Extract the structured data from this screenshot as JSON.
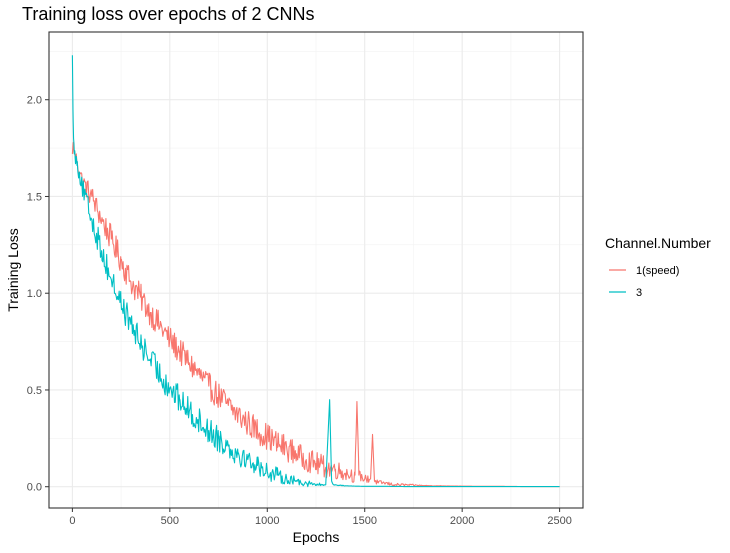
{
  "chart_data": {
    "type": "line",
    "title": "Training loss over epochs of 2 CNNs",
    "xlabel": "Epochs",
    "ylabel": "Training Loss",
    "xlim": [
      -120,
      2620
    ],
    "ylim": [
      -0.11,
      2.35
    ],
    "x_ticks": [
      0,
      500,
      1000,
      1500,
      2000,
      2500
    ],
    "x_tick_labels": [
      "0",
      "500",
      "1000",
      "1500",
      "2000",
      "2500"
    ],
    "y_ticks": [
      0.0,
      0.5,
      1.0,
      1.5,
      2.0
    ],
    "y_tick_labels": [
      "0.0",
      "0.5",
      "1.0",
      "1.5",
      "2.0"
    ],
    "grid": true,
    "legend": {
      "title": "Channel.Number",
      "position": "right"
    },
    "series": [
      {
        "name": "1(speed)",
        "color": "#F8766D",
        "x": [
          0,
          5,
          10,
          25,
          50,
          100,
          150,
          200,
          250,
          300,
          350,
          400,
          450,
          500,
          550,
          600,
          650,
          700,
          750,
          800,
          850,
          900,
          950,
          1000,
          1050,
          1100,
          1150,
          1200,
          1250,
          1300,
          1350,
          1400,
          1450,
          1460,
          1470,
          1500,
          1530,
          1540,
          1550,
          1570,
          1600,
          1650,
          1700,
          1750,
          1800,
          1900,
          2000,
          2100,
          2200,
          2300,
          2400,
          2500
        ],
        "y": [
          1.72,
          1.78,
          1.72,
          1.68,
          1.58,
          1.5,
          1.38,
          1.28,
          1.17,
          1.06,
          0.98,
          0.9,
          0.83,
          0.76,
          0.7,
          0.64,
          0.58,
          0.52,
          0.47,
          0.42,
          0.37,
          0.33,
          0.29,
          0.26,
          0.22,
          0.2,
          0.17,
          0.14,
          0.12,
          0.1,
          0.09,
          0.07,
          0.06,
          0.44,
          0.06,
          0.04,
          0.04,
          0.27,
          0.03,
          0.02,
          0.02,
          0.01,
          0.01,
          0.008,
          0.006,
          0.004,
          0.003,
          0.002,
          0.002,
          0.001,
          0.001,
          0.001
        ],
        "noise": [
          0.02,
          0.02,
          0.03,
          0.05,
          0.05,
          0.06,
          0.06,
          0.07,
          0.07,
          0.07,
          0.07,
          0.07,
          0.07,
          0.07,
          0.07,
          0.07,
          0.07,
          0.07,
          0.07,
          0.07,
          0.07,
          0.07,
          0.07,
          0.07,
          0.07,
          0.07,
          0.06,
          0.06,
          0.06,
          0.06,
          0.05,
          0.04,
          0.04,
          0.0,
          0.03,
          0.02,
          0.02,
          0.0,
          0.015,
          0.012,
          0.01,
          0.008,
          0.006,
          0.004,
          0.002,
          0.001,
          0.0,
          0.0,
          0.0,
          0.0,
          0.0,
          0.0
        ]
      },
      {
        "name": "3",
        "color": "#00BFC4",
        "x": [
          0,
          3,
          6,
          10,
          25,
          50,
          100,
          150,
          200,
          250,
          300,
          350,
          400,
          450,
          500,
          550,
          600,
          650,
          700,
          750,
          800,
          850,
          900,
          950,
          1000,
          1050,
          1100,
          1150,
          1200,
          1250,
          1300,
          1320,
          1330,
          1340,
          1400,
          1450,
          1500,
          1600,
          1700,
          1800,
          1900,
          2000,
          2100,
          2200,
          2300,
          2400,
          2500
        ],
        "y": [
          2.23,
          1.95,
          1.8,
          1.72,
          1.68,
          1.55,
          1.38,
          1.22,
          1.07,
          0.95,
          0.84,
          0.74,
          0.66,
          0.58,
          0.51,
          0.45,
          0.39,
          0.34,
          0.29,
          0.25,
          0.21,
          0.17,
          0.14,
          0.11,
          0.08,
          0.06,
          0.04,
          0.03,
          0.02,
          0.01,
          0.01,
          0.45,
          0.03,
          0.01,
          0.005,
          0.003,
          0.002,
          0.002,
          0.001,
          0.001,
          0.001,
          0.001,
          0.001,
          0.001,
          0.001,
          0.001,
          0.001
        ],
        "noise": [
          0.0,
          0.0,
          0.03,
          0.04,
          0.05,
          0.05,
          0.06,
          0.07,
          0.07,
          0.07,
          0.07,
          0.07,
          0.07,
          0.07,
          0.07,
          0.07,
          0.07,
          0.07,
          0.07,
          0.07,
          0.07,
          0.06,
          0.06,
          0.05,
          0.05,
          0.04,
          0.03,
          0.02,
          0.02,
          0.01,
          0.008,
          0.0,
          0.005,
          0.003,
          0.002,
          0.0,
          0.0,
          0.0,
          0.0,
          0.0,
          0.0,
          0.0,
          0.0,
          0.0,
          0.0,
          0.0,
          0.0
        ]
      }
    ]
  }
}
